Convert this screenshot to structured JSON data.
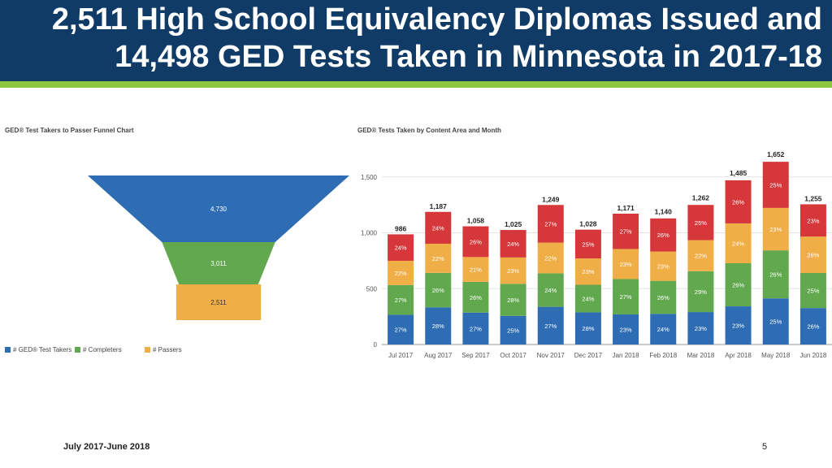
{
  "slide": {
    "title_line1": "2,511 High School Equivalency Diplomas Issued and",
    "title_line2": "14,498 GED Tests Taken in Minnesota in 2017-18",
    "footer_left": "July 2017-June 2018",
    "page_number": "5"
  },
  "colors": {
    "header_bg": "#0f3b66",
    "header_stripe": "#8cc63f",
    "blue": "#2e6db4",
    "green": "#62a84f",
    "orange": "#f0ae47",
    "red": "#d6373a"
  },
  "chart_data": [
    {
      "type": "funnel",
      "title": "GED® Test Takers to Passer Funnel Chart",
      "stages": [
        {
          "name": "# GED® Test Takers",
          "value": 4730,
          "label": "4,730",
          "color": "#2e6db4"
        },
        {
          "name": "# Completers",
          "value": 3011,
          "label": "3,011",
          "color": "#62a84f"
        },
        {
          "name": "# Passers",
          "value": 2511,
          "label": "2,511",
          "color": "#f0ae47"
        }
      ],
      "legend_position": "bottom-left"
    },
    {
      "type": "bar",
      "stacked": true,
      "title": "GED® Tests Taken by Content Area and Month",
      "categories": [
        "Jul 2017",
        "Aug 2017",
        "Sep 2017",
        "Oct 2017",
        "Nov 2017",
        "Dec 2017",
        "Jan 2018",
        "Feb 2018",
        "Mar 2018",
        "Apr 2018",
        "May 2018",
        "Jun 2018"
      ],
      "totals": [
        986,
        1187,
        1058,
        1025,
        1249,
        1028,
        1171,
        1140,
        1262,
        1485,
        1652,
        1255
      ],
      "total_labels": [
        "986",
        "1,187",
        "1,058",
        "1,025",
        "1,249",
        "1,028",
        "1,171",
        "1,140",
        "1,262",
        "1,485",
        "1,652",
        "1,255"
      ],
      "series": [
        {
          "color": "#2e6db4",
          "percents": [
            27,
            28,
            27,
            25,
            27,
            28,
            23,
            24,
            23,
            23,
            25,
            26
          ]
        },
        {
          "color": "#62a84f",
          "percents": [
            27,
            26,
            26,
            28,
            24,
            24,
            27,
            26,
            29,
            26,
            26,
            25
          ]
        },
        {
          "color": "#f0ae47",
          "percents": [
            22,
            22,
            21,
            23,
            22,
            23,
            23,
            23,
            22,
            24,
            23,
            26
          ]
        },
        {
          "color": "#d6373a",
          "percents": [
            24,
            24,
            26,
            24,
            27,
            25,
            27,
            26,
            25,
            26,
            25,
            23
          ]
        }
      ],
      "yticks": [
        0,
        500,
        1000,
        1500
      ],
      "ytick_labels": [
        "0",
        "500",
        "1,000",
        "1,500"
      ],
      "ylim": [
        0,
        1700
      ],
      "grid": true
    }
  ]
}
